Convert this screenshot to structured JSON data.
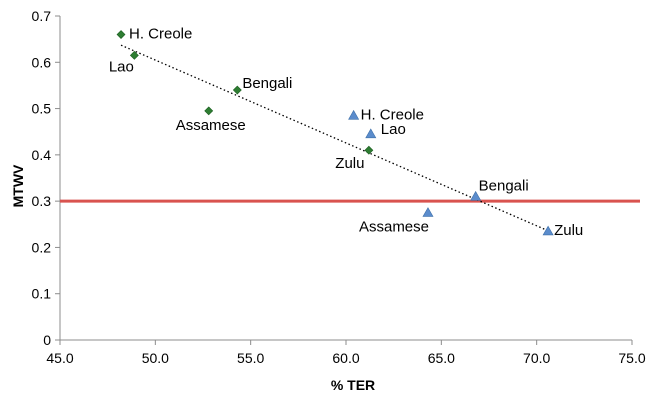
{
  "chart_data": {
    "type": "scatter",
    "xlabel": "% TER",
    "ylabel": "MTWV",
    "xlim": [
      45.0,
      75.0
    ],
    "ylim": [
      0,
      0.7
    ],
    "x_ticks": [
      "45.0",
      "50.0",
      "55.0",
      "60.0",
      "65.0",
      "70.0",
      "75.0"
    ],
    "y_ticks": [
      "0",
      "0.1",
      "0.2",
      "0.3",
      "0.4",
      "0.5",
      "0.6",
      "0.7"
    ],
    "grid": false,
    "legend": "none",
    "series": [
      {
        "marker": "diamond",
        "color": "#2e7d32",
        "points": [
          {
            "x": 48.2,
            "y": 0.66,
            "label": "H. Creole"
          },
          {
            "x": 48.9,
            "y": 0.615,
            "label": "Lao"
          },
          {
            "x": 54.3,
            "y": 0.54,
            "label": "Bengali"
          },
          {
            "x": 52.8,
            "y": 0.495,
            "label": "Assamese"
          },
          {
            "x": 61.2,
            "y": 0.41,
            "label": "Zulu"
          }
        ]
      },
      {
        "marker": "triangle",
        "color": "#5b8ccc",
        "points": [
          {
            "x": 60.4,
            "y": 0.485,
            "label": "H. Creole"
          },
          {
            "x": 61.3,
            "y": 0.445,
            "label": "Lao"
          },
          {
            "x": 66.8,
            "y": 0.31,
            "label": "Bengali"
          },
          {
            "x": 64.3,
            "y": 0.275,
            "label": "Assamese"
          },
          {
            "x": 70.6,
            "y": 0.235,
            "label": "Zulu"
          }
        ]
      }
    ],
    "trendline": {
      "x": [
        48.2,
        70.6
      ],
      "y": [
        0.637,
        0.236
      ],
      "style": "dotted",
      "color": "#000000"
    },
    "reference_line": {
      "y": 0.3,
      "color": "#d9534f"
    }
  }
}
